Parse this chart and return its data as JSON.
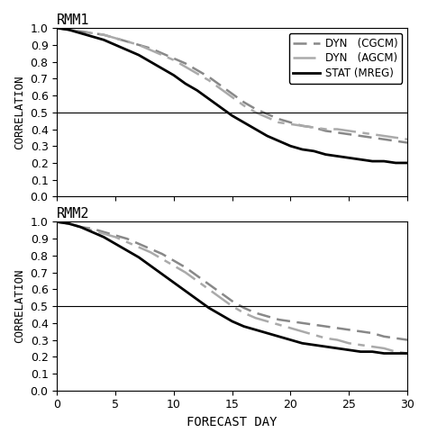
{
  "title1": "RMM1",
  "title2": "RMM2",
  "xlabel": "FORECAST DAY",
  "ylabel": "CORRELATION",
  "xlim": [
    0,
    30
  ],
  "ylim": [
    0,
    1.0
  ],
  "hline_y": 0.5,
  "yticks": [
    0,
    0.1,
    0.2,
    0.3,
    0.4,
    0.5,
    0.6,
    0.7,
    0.8,
    0.9,
    1
  ],
  "xticks": [
    0,
    5,
    10,
    15,
    20,
    25,
    30
  ],
  "lead_days": [
    0,
    1,
    2,
    3,
    4,
    5,
    6,
    7,
    8,
    9,
    10,
    11,
    12,
    13,
    14,
    15,
    16,
    17,
    18,
    19,
    20,
    21,
    22,
    23,
    24,
    25,
    26,
    27,
    28,
    29,
    30
  ],
  "rmm1_cgcm": [
    1.0,
    0.99,
    0.98,
    0.97,
    0.96,
    0.94,
    0.92,
    0.9,
    0.88,
    0.85,
    0.82,
    0.79,
    0.75,
    0.71,
    0.66,
    0.61,
    0.56,
    0.52,
    0.49,
    0.46,
    0.44,
    0.42,
    0.41,
    0.39,
    0.38,
    0.37,
    0.36,
    0.35,
    0.34,
    0.33,
    0.32
  ],
  "rmm1_agcm": [
    1.0,
    0.99,
    0.98,
    0.97,
    0.96,
    0.94,
    0.92,
    0.9,
    0.87,
    0.84,
    0.81,
    0.77,
    0.73,
    0.69,
    0.64,
    0.59,
    0.54,
    0.5,
    0.47,
    0.44,
    0.43,
    0.42,
    0.41,
    0.4,
    0.4,
    0.39,
    0.38,
    0.37,
    0.36,
    0.35,
    0.34
  ],
  "rmm1_mreg": [
    1.0,
    0.99,
    0.97,
    0.95,
    0.93,
    0.9,
    0.87,
    0.84,
    0.8,
    0.76,
    0.72,
    0.67,
    0.63,
    0.58,
    0.53,
    0.48,
    0.44,
    0.4,
    0.36,
    0.33,
    0.3,
    0.28,
    0.27,
    0.25,
    0.24,
    0.23,
    0.22,
    0.21,
    0.21,
    0.2,
    0.2
  ],
  "rmm2_cgcm": [
    1.0,
    0.99,
    0.97,
    0.96,
    0.94,
    0.92,
    0.9,
    0.87,
    0.84,
    0.81,
    0.77,
    0.73,
    0.68,
    0.63,
    0.58,
    0.53,
    0.49,
    0.46,
    0.44,
    0.42,
    0.41,
    0.4,
    0.39,
    0.38,
    0.37,
    0.36,
    0.35,
    0.34,
    0.32,
    0.31,
    0.3
  ],
  "rmm2_agcm": [
    1.0,
    0.99,
    0.97,
    0.95,
    0.93,
    0.91,
    0.88,
    0.85,
    0.82,
    0.78,
    0.74,
    0.7,
    0.65,
    0.6,
    0.55,
    0.5,
    0.46,
    0.43,
    0.41,
    0.39,
    0.37,
    0.35,
    0.33,
    0.31,
    0.3,
    0.28,
    0.27,
    0.26,
    0.25,
    0.23,
    0.22
  ],
  "rmm2_mreg": [
    1.0,
    0.99,
    0.97,
    0.94,
    0.91,
    0.87,
    0.83,
    0.79,
    0.74,
    0.69,
    0.64,
    0.59,
    0.54,
    0.49,
    0.45,
    0.41,
    0.38,
    0.36,
    0.34,
    0.32,
    0.3,
    0.28,
    0.27,
    0.26,
    0.25,
    0.24,
    0.23,
    0.23,
    0.22,
    0.22,
    0.22
  ],
  "color_cgcm": "#888888",
  "color_agcm": "#aaaaaa",
  "color_mreg": "#000000",
  "lw_dashed": 1.8,
  "lw_solid": 2.0
}
